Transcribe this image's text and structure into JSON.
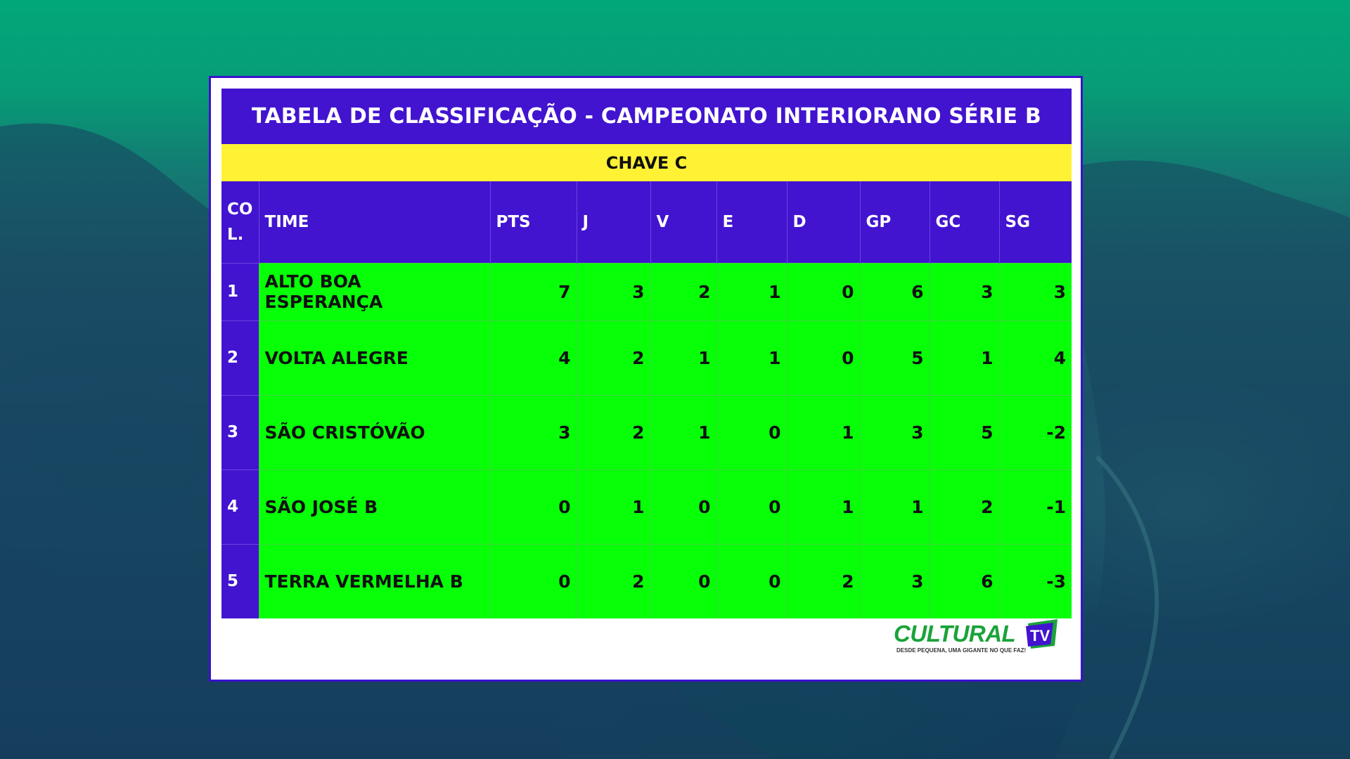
{
  "title": "TABELA DE CLASSIFICAÇÃO - CAMPEONATO INTERIORANO SÉRIE B",
  "group": "CHAVE C",
  "columns": [
    "CO L.",
    "TIME",
    "PTS",
    "J",
    "V",
    "E",
    "D",
    "GP",
    "GC",
    "SG"
  ],
  "rows": [
    [
      "1",
      "ALTO BOA ESPERANÇA",
      "7",
      "3",
      "2",
      "1",
      "0",
      "6",
      "3",
      "3"
    ],
    [
      "2",
      "VOLTA ALEGRE",
      "4",
      "2",
      "1",
      "1",
      "0",
      "5",
      "1",
      "4"
    ],
    [
      "3",
      "SÃO CRISTÓVÃO",
      "3",
      "2",
      "1",
      "0",
      "1",
      "3",
      "5",
      "-2"
    ],
    [
      "4",
      "SÃO JOSÉ B",
      "0",
      "1",
      "0",
      "0",
      "1",
      "1",
      "2",
      "-1"
    ],
    [
      "5",
      "TERRA VERMELHA B",
      "0",
      "2",
      "0",
      "0",
      "2",
      "3",
      "6",
      "-3"
    ]
  ],
  "logo": {
    "name": "CULTURAL",
    "badge": "TV",
    "tagline": "DESDE PEQUENA, UMA GIGANTE NO QUE FAZ!"
  },
  "colors": {
    "header": "#4214cf",
    "group_bar": "#fff234",
    "rows": "#07ff07",
    "background": "#1b5068"
  }
}
